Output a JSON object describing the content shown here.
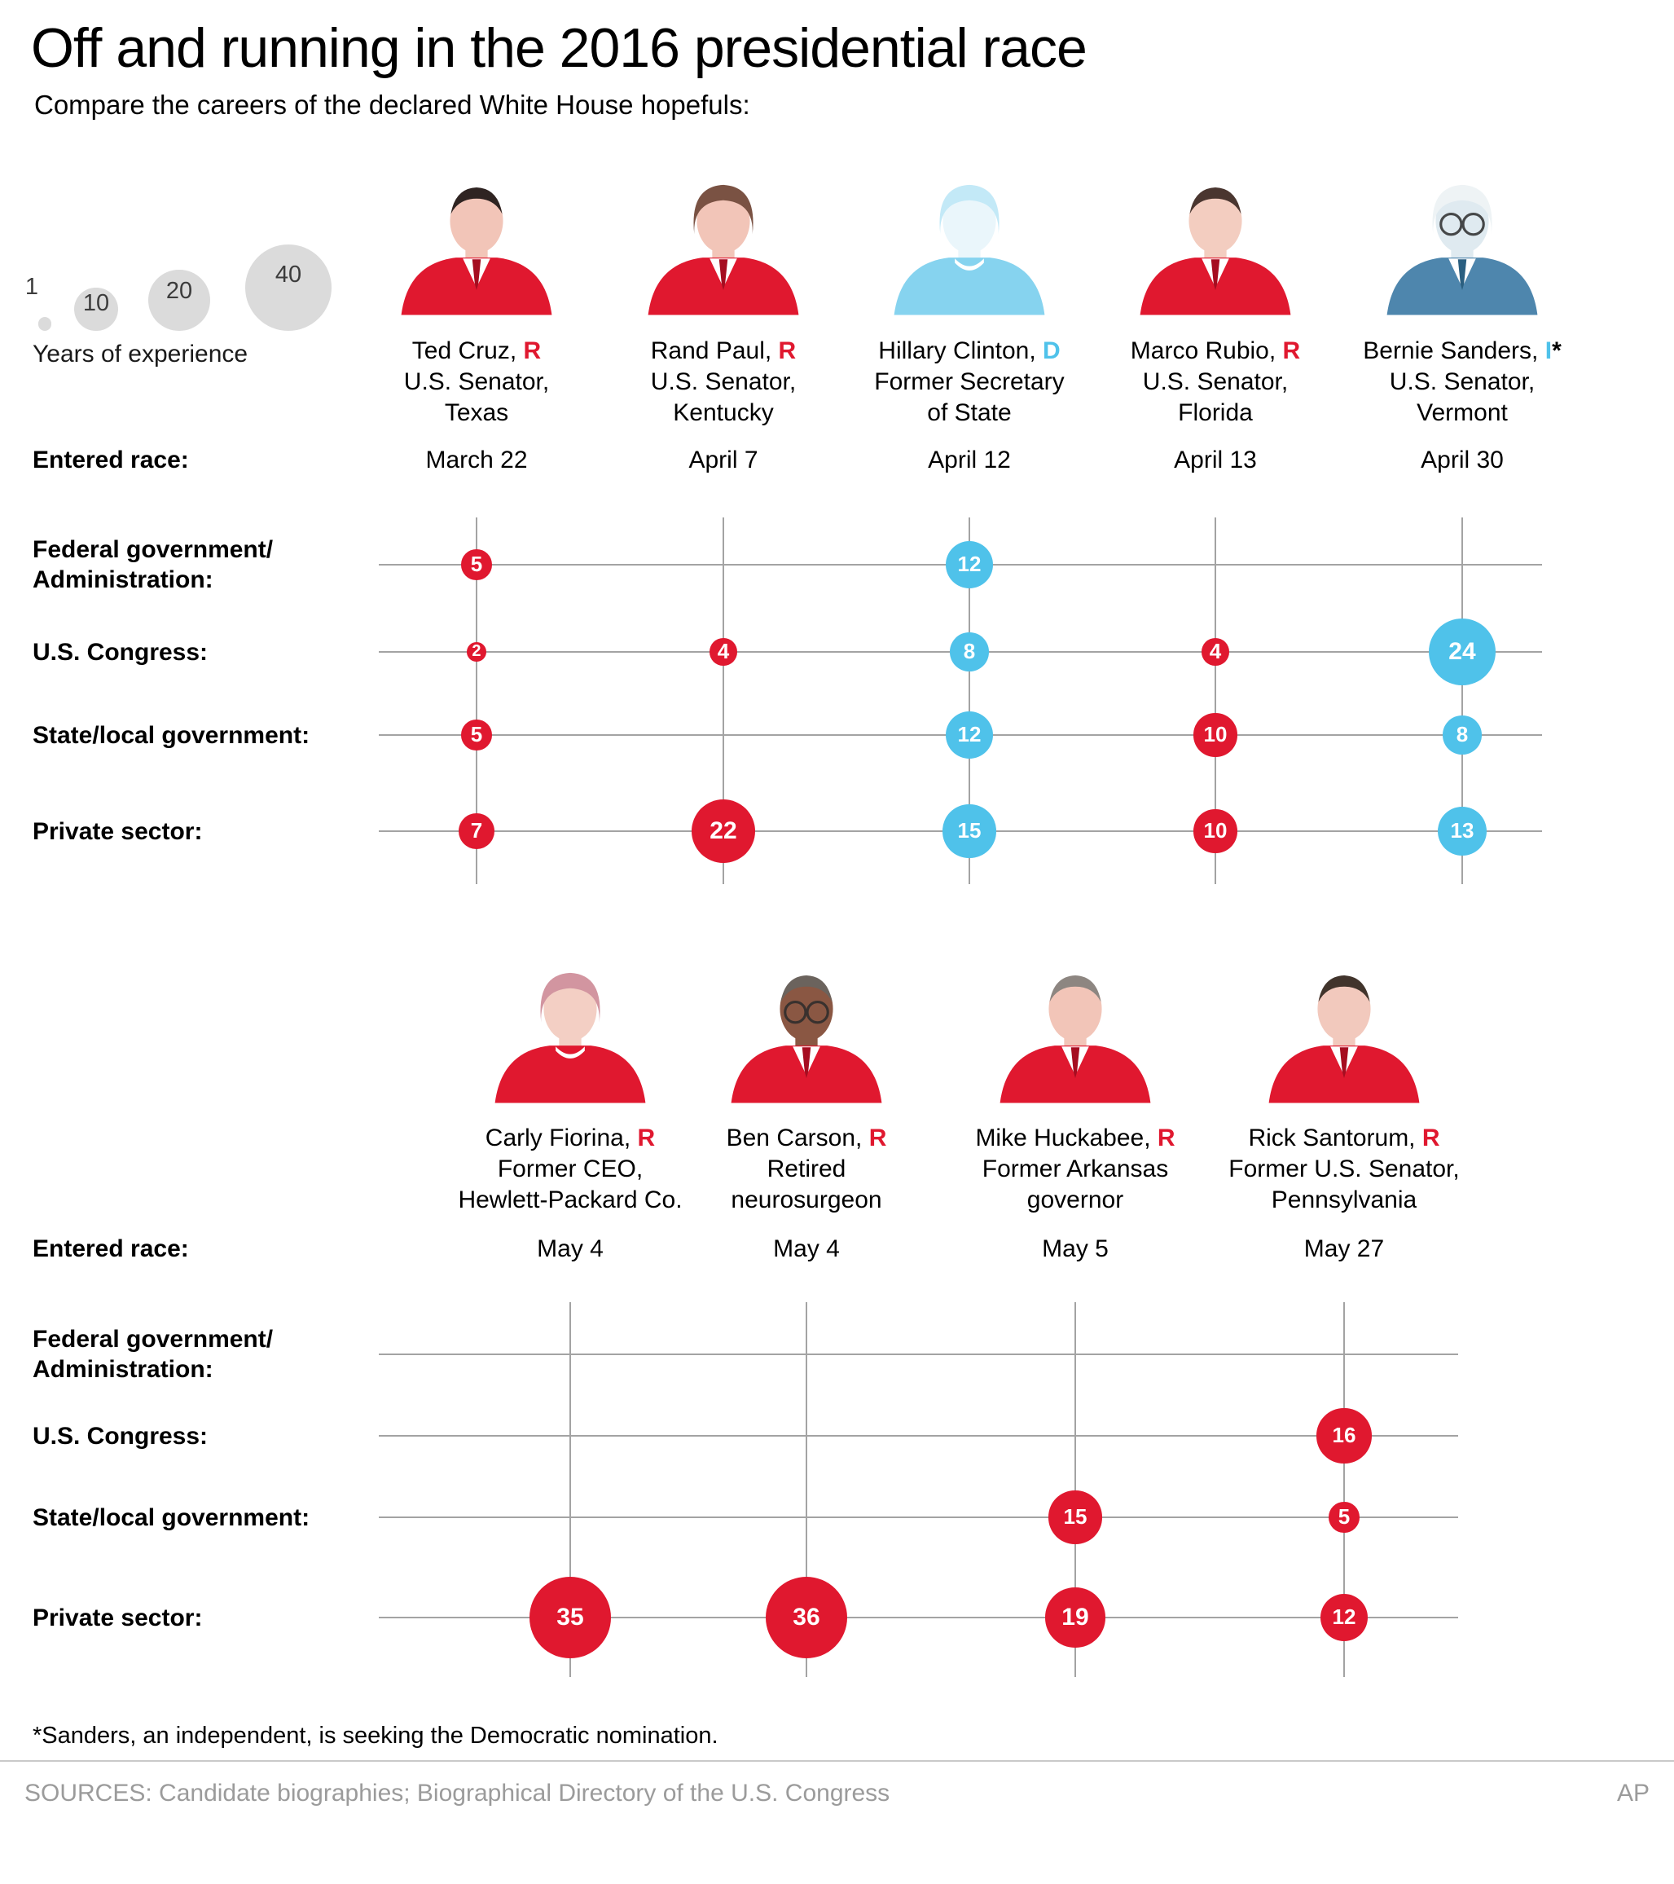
{
  "title": "Off and running in the 2016 presidential race",
  "subtitle": "Compare the careers of the declared White House hopefuls:",
  "legend": {
    "label": "Years of experience",
    "sizes": [
      1,
      10,
      20,
      40
    ]
  },
  "entered_race_label": "Entered race:",
  "footnote": "*Sanders, an independent, is seeking the Democratic nomination.",
  "sources": "SOURCES: Candidate biographies; Biographical Directory of the U.S. Congress",
  "credit": "AP",
  "colors": {
    "republican": "#e0182f",
    "democrat": "#4fc2ea",
    "independent": "#4fc2ea",
    "legend_bubble": "#dbdbdb",
    "grid": "#a3a3a3",
    "muted": "#9b9b9b"
  },
  "chart_data": [
    {
      "type": "bubble",
      "unit": "years of experience",
      "legend_position": "top-left",
      "categories": [
        "Federal government/Administration",
        "U.S. Congress",
        "State/local government",
        "Private sector"
      ],
      "category_lines": [
        [
          "Federal government/",
          "Administration:"
        ],
        [
          "U.S. Congress:"
        ],
        [
          "State/local government:"
        ],
        [
          "Private sector:"
        ]
      ],
      "candidates": [
        {
          "name": "Ted Cruz,",
          "party": "R",
          "party_suffix": "",
          "party_color": "#e0182f",
          "desc": [
            "U.S. Senator,",
            "Texas"
          ],
          "entered": "March 22",
          "bubble_color": "#e0182f",
          "values": [
            5,
            2,
            5,
            7
          ],
          "portrait": {
            "suit": "#e0182f",
            "skin": "#f2c5b8",
            "hair": "#2f2422",
            "tie": "#a50d20",
            "glasses": false,
            "hair_style": "short"
          }
        },
        {
          "name": "Rand Paul,",
          "party": "R",
          "party_suffix": "",
          "party_color": "#e0182f",
          "desc": [
            "U.S. Senator,",
            "Kentucky"
          ],
          "entered": "April 7",
          "bubble_color": "#e0182f",
          "values": [
            null,
            4,
            null,
            22
          ],
          "portrait": {
            "suit": "#e0182f",
            "skin": "#f2c5b8",
            "hair": "#7a5243",
            "tie": "#a50d20",
            "glasses": false,
            "hair_style": "full"
          }
        },
        {
          "name": "Hillary Clinton,",
          "party": "D",
          "party_suffix": "",
          "party_color": "#4fc2ea",
          "desc": [
            "Former Secretary",
            "of State"
          ],
          "entered": "April 12",
          "bubble_color": "#4fc2ea",
          "values": [
            12,
            8,
            12,
            15
          ],
          "portrait": {
            "suit": "#86d3ef",
            "skin": "#eaf6fb",
            "hair": "#c3e9f7",
            "tie": null,
            "glasses": false,
            "hair_style": "full"
          }
        },
        {
          "name": "Marco Rubio,",
          "party": "R",
          "party_suffix": "",
          "party_color": "#e0182f",
          "desc": [
            "U.S. Senator,",
            "Florida"
          ],
          "entered": "April 13",
          "bubble_color": "#e0182f",
          "values": [
            null,
            4,
            10,
            10
          ],
          "portrait": {
            "suit": "#e0182f",
            "skin": "#f3cdc0",
            "hair": "#4a3630",
            "tie": "#a50d20",
            "glasses": false,
            "hair_style": "short"
          }
        },
        {
          "name": "Bernie Sanders,",
          "party": "I",
          "party_suffix": "*",
          "party_color": "#4fc2ea",
          "desc": [
            "U.S. Senator,",
            "Vermont"
          ],
          "entered": "April 30",
          "bubble_color": "#4fc2ea",
          "values": [
            null,
            24,
            8,
            13
          ],
          "portrait": {
            "suit": "#4e86ad",
            "skin": "#dfeaf0",
            "hair": "#eef3f5",
            "tie": "#2b5f80",
            "glasses": true,
            "hair_style": "full"
          }
        }
      ]
    },
    {
      "type": "bubble",
      "unit": "years of experience",
      "categories": [
        "Federal government/Administration",
        "U.S. Congress",
        "State/local government",
        "Private sector"
      ],
      "category_lines": [
        [
          "Federal government/",
          "Administration:"
        ],
        [
          "U.S. Congress:"
        ],
        [
          "State/local government:"
        ],
        [
          "Private sector:"
        ]
      ],
      "candidates": [
        {
          "name": "Carly Fiorina,",
          "party": "R",
          "party_suffix": "",
          "party_color": "#e0182f",
          "desc": [
            "Former CEO,",
            "Hewlett-Packard Co."
          ],
          "entered": "May 4",
          "bubble_color": "#e0182f",
          "values": [
            null,
            null,
            null,
            35
          ],
          "portrait": {
            "suit": "#e0182f",
            "skin": "#f3cfc4",
            "hair": "#d295a0",
            "tie": null,
            "glasses": false,
            "hair_style": "full"
          }
        },
        {
          "name": "Ben Carson,",
          "party": "R",
          "party_suffix": "",
          "party_color": "#e0182f",
          "desc": [
            "Retired",
            "neurosurgeon"
          ],
          "entered": "May 4",
          "bubble_color": "#e0182f",
          "values": [
            null,
            null,
            null,
            36
          ],
          "portrait": {
            "suit": "#e0182f",
            "skin": "#8a5743",
            "hair": "#6b635d",
            "tie": "#a50d20",
            "glasses": true,
            "hair_style": "short"
          }
        },
        {
          "name": "Mike Huckabee,",
          "party": "R",
          "party_suffix": "",
          "party_color": "#e0182f",
          "desc": [
            "Former Arkansas",
            "governor"
          ],
          "entered": "May 5",
          "bubble_color": "#e0182f",
          "values": [
            null,
            null,
            15,
            19
          ],
          "portrait": {
            "suit": "#e0182f",
            "skin": "#f2c5b8",
            "hair": "#8d8681",
            "tie": "#a50d20",
            "glasses": false,
            "hair_style": "short"
          }
        },
        {
          "name": "Rick Santorum,",
          "party": "R",
          "party_suffix": "",
          "party_color": "#e0182f",
          "desc": [
            "Former U.S. Senator,",
            "Pennsylvania"
          ],
          "entered": "May 27",
          "bubble_color": "#e0182f",
          "values": [
            null,
            16,
            5,
            12
          ],
          "portrait": {
            "suit": "#e0182f",
            "skin": "#f2c9bd",
            "hair": "#41342c",
            "tie": "#a50d20",
            "glasses": false,
            "hair_style": "short"
          }
        }
      ]
    }
  ]
}
